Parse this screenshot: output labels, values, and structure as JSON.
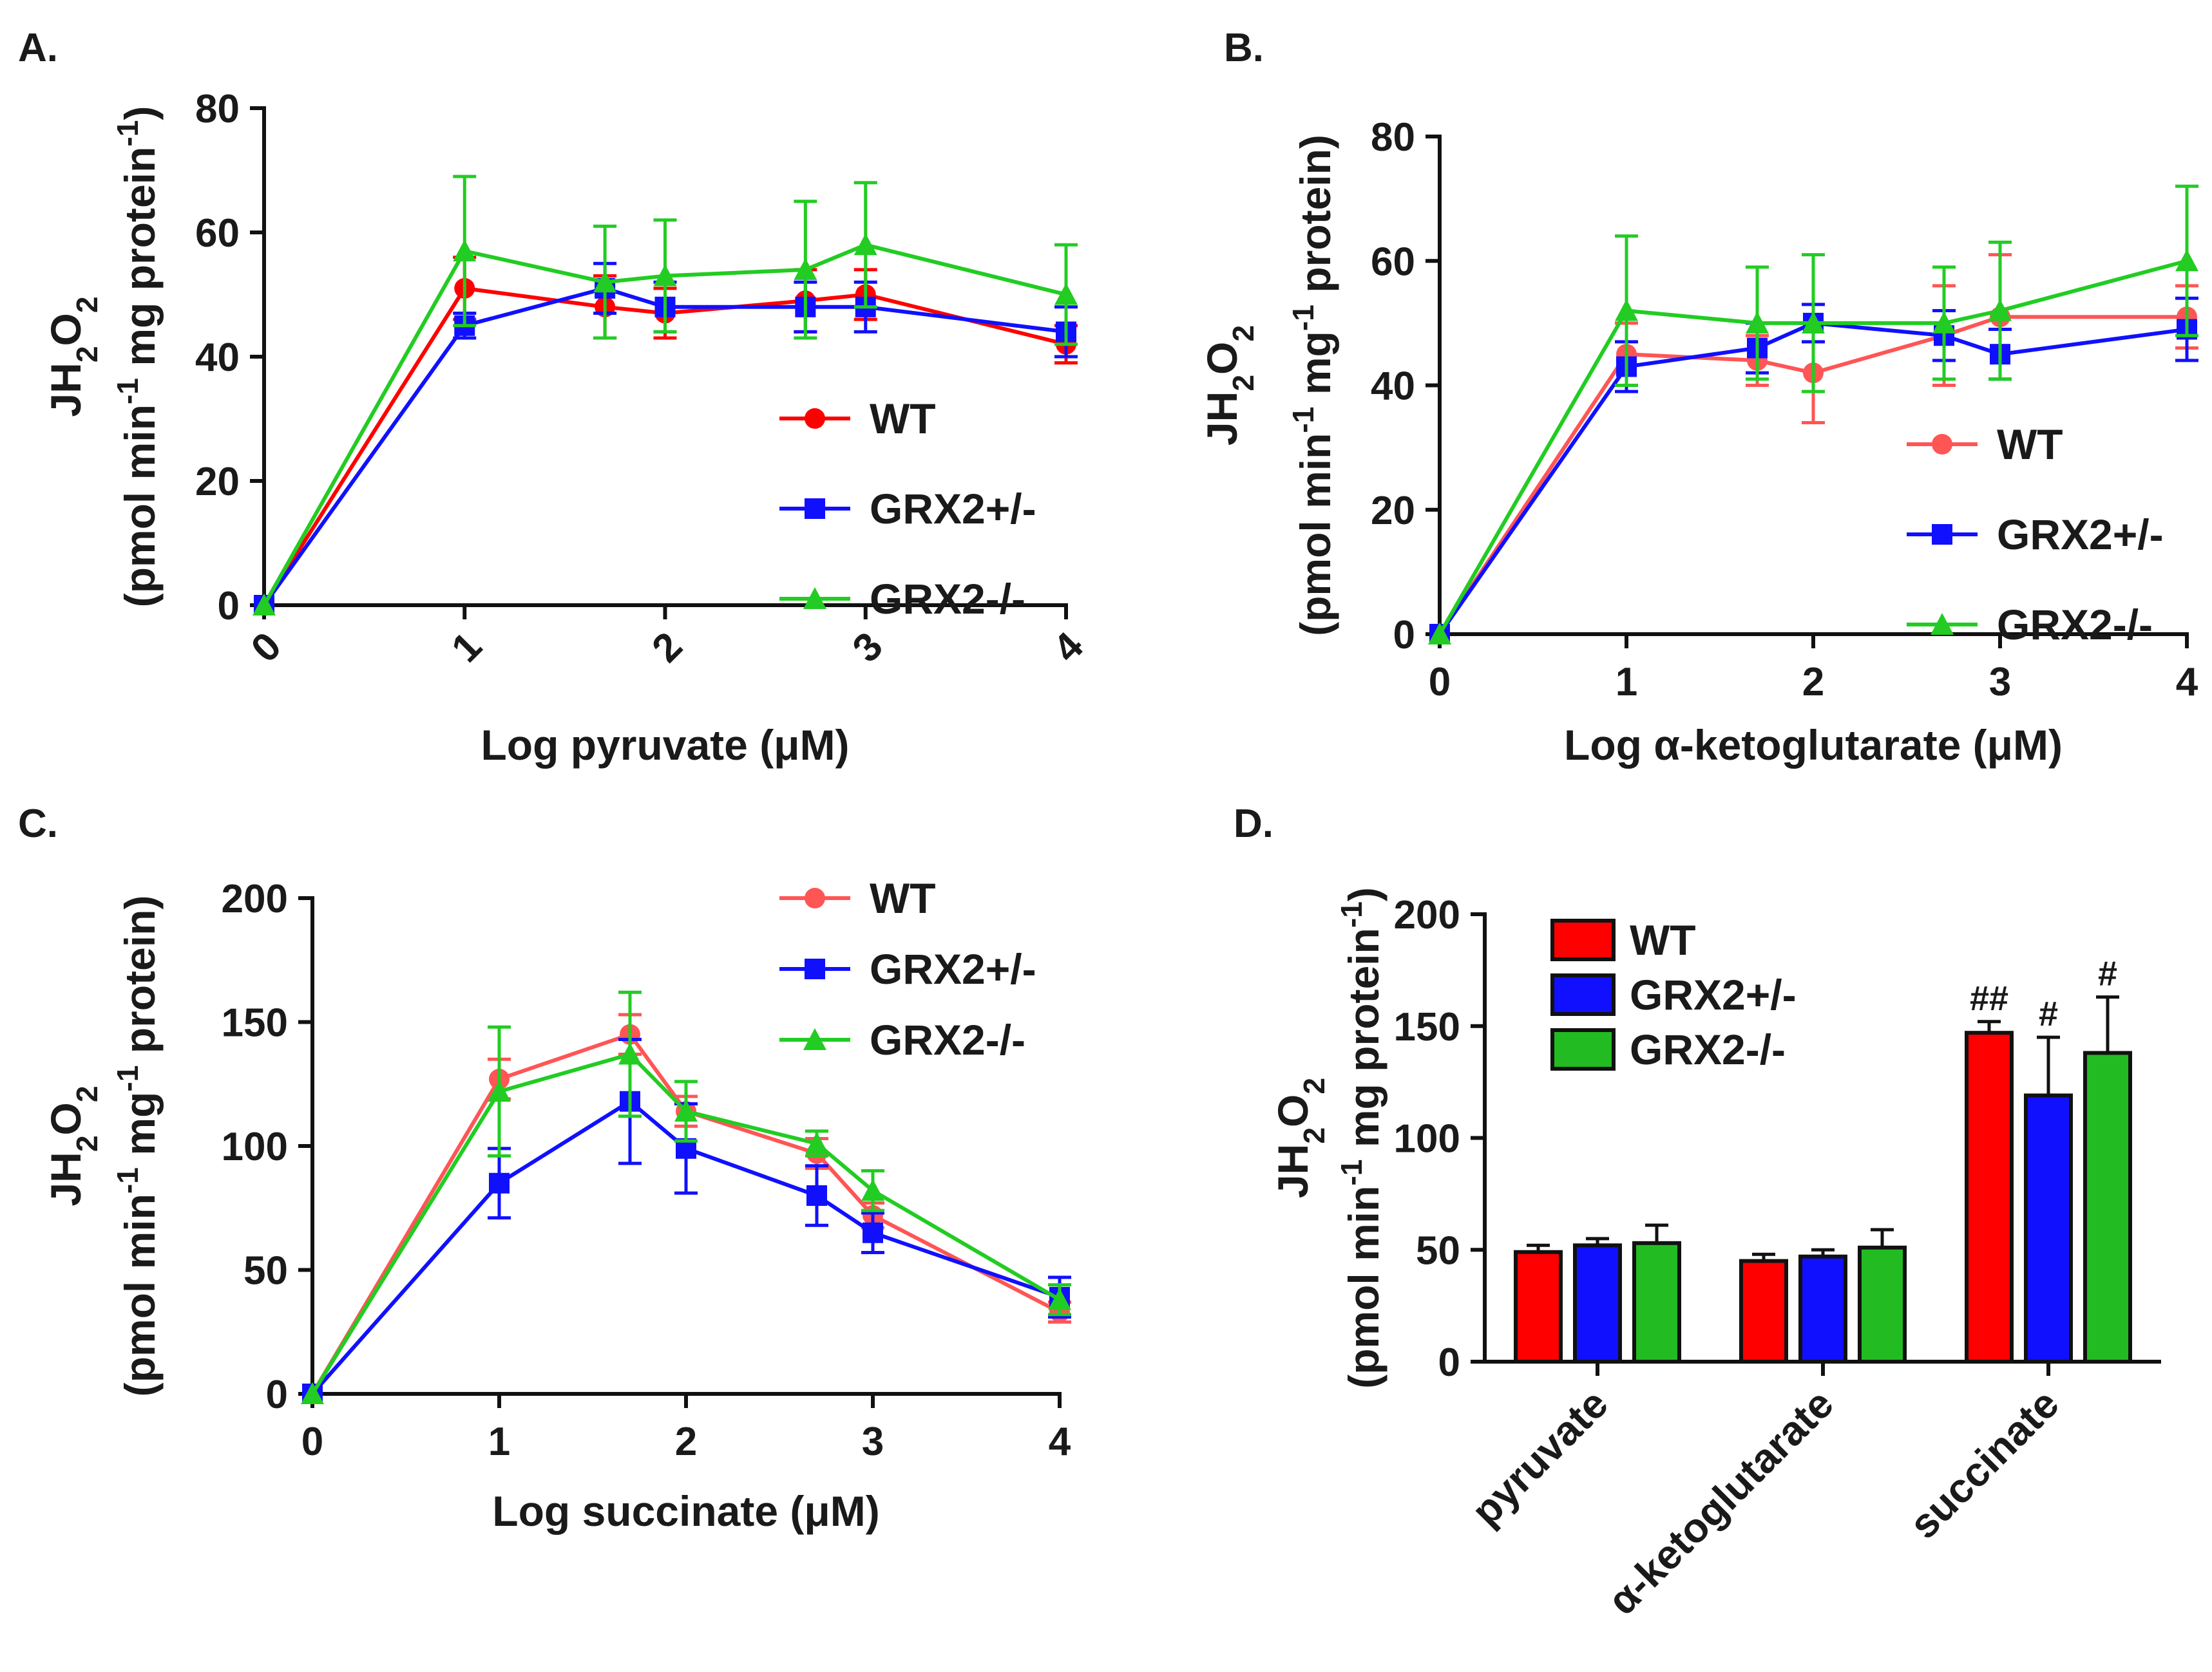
{
  "chart_data": [
    {
      "panel": "A.",
      "type": "line",
      "title": "",
      "xlabel": "Log pyruvate (μM)",
      "ylabel_line1": "JH2O2",
      "ylabel_line2": "(pmol min-1 mg protein-1)",
      "xlim": [
        0,
        4
      ],
      "ylim": [
        0,
        80
      ],
      "yticks": [
        "0",
        "20",
        "40",
        "60",
        "80"
      ],
      "xticks": [
        "0",
        "1",
        "2",
        "3",
        "4"
      ],
      "xticks_rotated": true,
      "legend": "bottom-right",
      "series": [
        {
          "name": "WT",
          "color": "#ff0000",
          "marker": "circle",
          "x": [
            0,
            1,
            1.7,
            2,
            2.7,
            3,
            4
          ],
          "y": [
            0,
            51,
            48,
            47,
            49,
            50,
            42
          ],
          "err": [
            0,
            5,
            5,
            4,
            5,
            4,
            3
          ]
        },
        {
          "name": "GRX2+/-",
          "color": "#1010ff",
          "marker": "square",
          "x": [
            0,
            1,
            1.7,
            2,
            2.7,
            3,
            4
          ],
          "y": [
            0,
            45,
            51,
            48,
            48,
            48,
            44
          ],
          "err": [
            0,
            2,
            4,
            4,
            4,
            4,
            4
          ]
        },
        {
          "name": "GRX2-/-",
          "color": "#22cc22",
          "marker": "triangle",
          "x": [
            0,
            1,
            1.7,
            2,
            2.7,
            3,
            4
          ],
          "y": [
            0,
            57,
            52,
            53,
            54,
            58,
            50
          ],
          "err": [
            0,
            12,
            9,
            9,
            11,
            10,
            8
          ]
        }
      ]
    },
    {
      "panel": "B.",
      "type": "line",
      "title": "",
      "xlabel": "Log α-ketoglutarate (μM)",
      "ylabel_line1": "JH2O2",
      "ylabel_line2": "(pmol min-1 mg-1 protein)",
      "xlim": [
        0,
        4
      ],
      "ylim": [
        0,
        80
      ],
      "yticks": [
        "0",
        "20",
        "40",
        "60",
        "80"
      ],
      "xticks": [
        "0",
        "1",
        "2",
        "3",
        "4"
      ],
      "xticks_rotated": false,
      "legend": "bottom-right",
      "series": [
        {
          "name": "WT",
          "color": "#ff5555",
          "marker": "circle",
          "x": [
            0,
            1,
            1.7,
            2,
            2.7,
            3,
            4
          ],
          "y": [
            0,
            45,
            44,
            42,
            48,
            51,
            51
          ],
          "err": [
            0,
            5,
            4,
            8,
            8,
            10,
            5
          ]
        },
        {
          "name": "GRX2+/-",
          "color": "#1010ff",
          "marker": "square",
          "x": [
            0,
            1,
            1.7,
            2,
            2.7,
            3,
            4
          ],
          "y": [
            0,
            43,
            46,
            50,
            48,
            45,
            49
          ],
          "err": [
            0,
            4,
            4,
            3,
            4,
            4,
            5
          ]
        },
        {
          "name": "GRX2-/-",
          "color": "#22cc22",
          "marker": "triangle",
          "x": [
            0,
            1,
            1.7,
            2,
            2.7,
            3,
            4
          ],
          "y": [
            0,
            52,
            50,
            50,
            50,
            52,
            60
          ],
          "err": [
            0,
            12,
            9,
            11,
            9,
            11,
            12
          ]
        }
      ]
    },
    {
      "panel": "C.",
      "type": "line",
      "title": "",
      "xlabel": "Log succinate (μM)",
      "ylabel_line1": "JH2O2",
      "ylabel_line2": "(pmol min-1 mg-1 protein)",
      "xlim": [
        0,
        4
      ],
      "ylim": [
        0,
        200
      ],
      "yticks": [
        "0",
        "50",
        "100",
        "150",
        "200"
      ],
      "xticks": [
        "0",
        "1",
        "2",
        "3",
        "4"
      ],
      "xticks_rotated": false,
      "legend": "top-right",
      "series": [
        {
          "name": "WT",
          "color": "#ff5555",
          "marker": "circle",
          "x": [
            0,
            1,
            1.7,
            2,
            2.7,
            3,
            4
          ],
          "y": [
            0,
            127,
            145,
            114,
            97,
            72,
            33
          ],
          "err": [
            0,
            8,
            8,
            6,
            6,
            5,
            4
          ]
        },
        {
          "name": "GRX2+/-",
          "color": "#1010ff",
          "marker": "square",
          "x": [
            0,
            1,
            1.7,
            2,
            2.7,
            3,
            4
          ],
          "y": [
            0,
            85,
            118,
            99,
            80,
            65,
            39
          ],
          "err": [
            0,
            14,
            25,
            18,
            12,
            8,
            8
          ]
        },
        {
          "name": "GRX2-/-",
          "color": "#22cc22",
          "marker": "triangle",
          "x": [
            0,
            1,
            1.7,
            2,
            2.7,
            3,
            4
          ],
          "y": [
            0,
            122,
            137,
            114,
            101,
            82,
            38
          ],
          "err": [
            0,
            26,
            25,
            12,
            5,
            8,
            6
          ]
        }
      ]
    },
    {
      "panel": "D.",
      "type": "bar",
      "title": "",
      "xlabel": "",
      "ylabel_line1": "JH2O2",
      "ylabel_line2": "(pmol min-1 mg protein-1)",
      "ylim": [
        0,
        200
      ],
      "yticks": [
        "0",
        "50",
        "100",
        "150",
        "200"
      ],
      "categories": [
        "pyruvate",
        "α-ketoglutarate",
        "succinate"
      ],
      "legend": "top-left",
      "series": [
        {
          "name": "WT",
          "color": "#ff0000",
          "values": [
            49,
            45,
            147
          ],
          "err": [
            3,
            3,
            5
          ]
        },
        {
          "name": "GRX2+/-",
          "color": "#1010ff",
          "values": [
            52,
            47,
            119
          ],
          "err": [
            3,
            3,
            26
          ]
        },
        {
          "name": "GRX2-/-",
          "color": "#22bb22",
          "values": [
            53,
            51,
            138
          ],
          "err": [
            8,
            8,
            25
          ]
        }
      ],
      "annotations": [
        {
          "category": 2,
          "series": 0,
          "text": "##"
        },
        {
          "category": 2,
          "series": 1,
          "text": "#"
        },
        {
          "category": 2,
          "series": 2,
          "text": "#"
        }
      ]
    }
  ]
}
